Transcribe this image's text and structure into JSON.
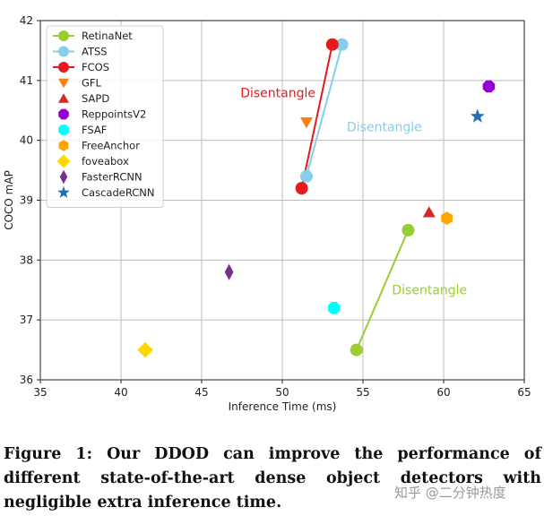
{
  "chart_data": {
    "type": "scatter",
    "title": "",
    "xlabel": "Inference Time (ms)",
    "ylabel": "COCO mAP",
    "xlim": [
      35,
      65
    ],
    "ylim": [
      36,
      42
    ],
    "xticks": [
      35,
      40,
      45,
      50,
      55,
      60,
      65
    ],
    "yticks": [
      36,
      37,
      38,
      39,
      40,
      41,
      42
    ],
    "grid": true,
    "legend_position": "upper-left",
    "series": [
      {
        "name": "RetinaNet",
        "marker": "circle",
        "color": "#9acd32",
        "line": true,
        "points": [
          {
            "x": 54.6,
            "y": 36.5
          },
          {
            "x": 57.8,
            "y": 38.5
          }
        ]
      },
      {
        "name": "ATSS",
        "marker": "circle",
        "color": "#87ceeb",
        "line": true,
        "points": [
          {
            "x": 51.5,
            "y": 39.4
          },
          {
            "x": 53.7,
            "y": 41.6
          }
        ]
      },
      {
        "name": "FCOS",
        "marker": "circle",
        "color": "#e41a1c",
        "line": true,
        "points": [
          {
            "x": 51.2,
            "y": 39.2
          },
          {
            "x": 53.1,
            "y": 41.6
          }
        ]
      },
      {
        "name": "GFL",
        "marker": "triangle-down",
        "color": "#ff7f0e",
        "line": false,
        "points": [
          {
            "x": 51.5,
            "y": 40.3
          }
        ]
      },
      {
        "name": "SAPD",
        "marker": "triangle-up",
        "color": "#d62728",
        "line": false,
        "points": [
          {
            "x": 59.1,
            "y": 38.8
          }
        ]
      },
      {
        "name": "ReppointsV2",
        "marker": "octagon",
        "color": "#9400d3",
        "line": false,
        "points": [
          {
            "x": 62.8,
            "y": 40.9
          }
        ]
      },
      {
        "name": "FSAF",
        "marker": "octagon",
        "color": "#00ffff",
        "line": false,
        "points": [
          {
            "x": 53.2,
            "y": 37.2
          }
        ]
      },
      {
        "name": "FreeAnchor",
        "marker": "hexagon",
        "color": "#ffa500",
        "line": false,
        "points": [
          {
            "x": 60.2,
            "y": 38.7
          }
        ]
      },
      {
        "name": "foveabox",
        "marker": "diamond",
        "color": "#ffd700",
        "line": false,
        "points": [
          {
            "x": 41.5,
            "y": 36.5
          }
        ]
      },
      {
        "name": "FasterRCNN",
        "marker": "thin-diamond",
        "color": "#7b2d8e",
        "line": false,
        "points": [
          {
            "x": 46.7,
            "y": 37.8
          }
        ]
      },
      {
        "name": "CascadeRCNN",
        "marker": "star",
        "color": "#1f6fb4",
        "line": false,
        "points": [
          {
            "x": 62.1,
            "y": 40.4
          }
        ]
      }
    ],
    "annotations": [
      {
        "text": "Disentangle",
        "color": "#e41a1c",
        "x": 47.4,
        "y": 40.72
      },
      {
        "text": "Disentangle",
        "color": "#87ceeb",
        "x": 54.0,
        "y": 40.15
      },
      {
        "text": "Disentangle",
        "color": "#9acd32",
        "x": 56.8,
        "y": 37.43
      }
    ]
  },
  "caption": "Figure 1: Our DDOD can improve the performance of different state-of-the-art dense object detectors with negligible extra inference time.",
  "watermark": "知乎 @二分钟热度"
}
